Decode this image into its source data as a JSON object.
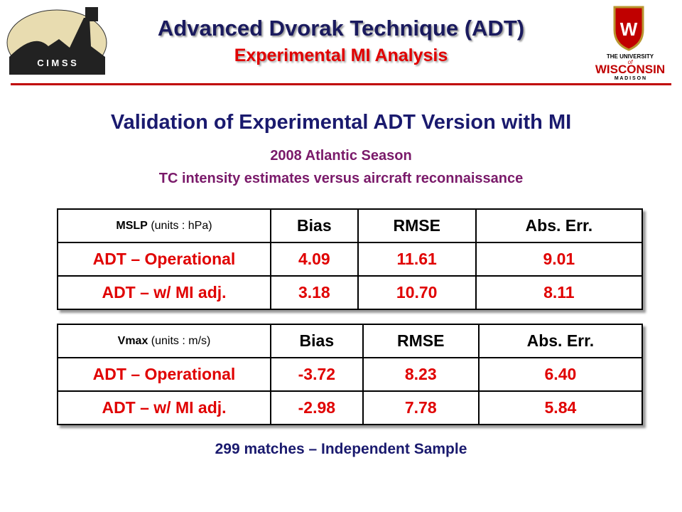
{
  "header": {
    "title": "Advanced Dvorak Technique (ADT)",
    "subtitle": "Experimental MI Analysis",
    "left_logo": {
      "text": "C I M S S"
    },
    "right_logo": {
      "line1": "THE UNIVERSITY",
      "line2": "of",
      "line3": "WISCONSIN",
      "line4": "M A D I S O N"
    }
  },
  "heading": "Validation of Experimental ADT Version with MI",
  "subheading": [
    "2008 Atlantic Season",
    "TC intensity estimates versus aircraft reconnaissance"
  ],
  "tables": [
    {
      "label": "MSLP",
      "units": "(units : hPa)",
      "columns": [
        "Bias",
        "RMSE",
        "Abs. Err."
      ],
      "rows": [
        [
          "ADT – Operational",
          "4.09",
          "11.61",
          "9.01"
        ],
        [
          "ADT – w/ MI adj.",
          "3.18",
          "10.70",
          "8.11"
        ]
      ]
    },
    {
      "label": "Vmax",
      "units": "(units : m/s)",
      "columns": [
        "Bias",
        "RMSE",
        "Abs. Err."
      ],
      "rows": [
        [
          "ADT – Operational",
          "-3.72",
          "8.23",
          "6.40"
        ],
        [
          "ADT – w/ MI adj.",
          "-2.98",
          "7.78",
          "5.84"
        ]
      ]
    }
  ],
  "footer": "299 matches – Independent Sample"
}
